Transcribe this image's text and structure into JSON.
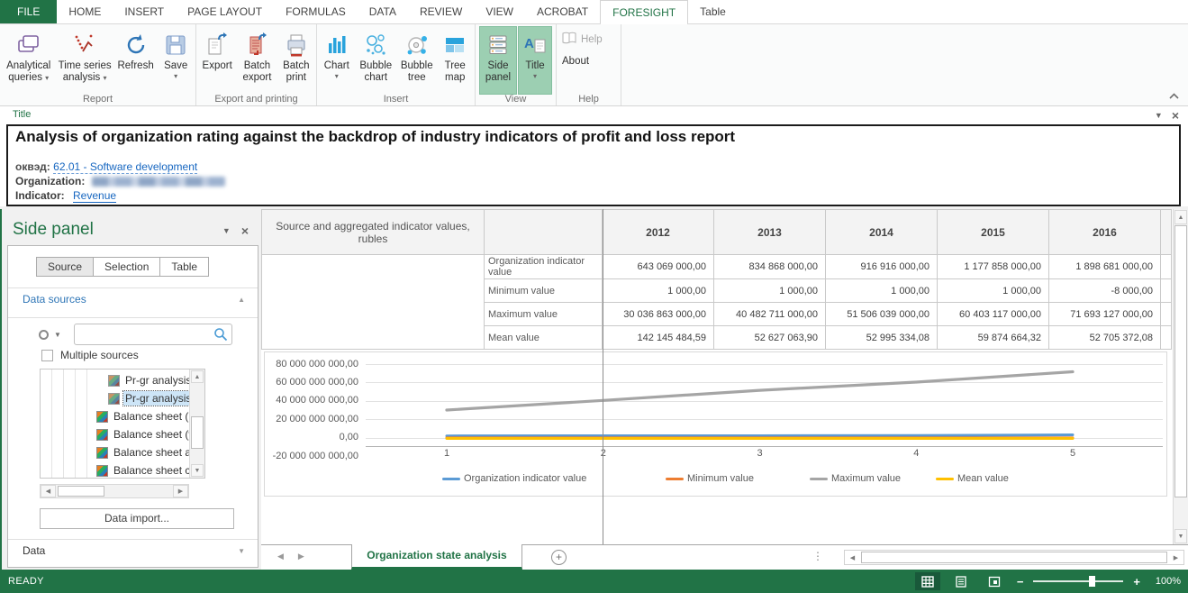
{
  "ribbon": {
    "tabs": [
      {
        "label": "FILE",
        "file": true
      },
      {
        "label": "HOME"
      },
      {
        "label": "INSERT"
      },
      {
        "label": "PAGE LAYOUT"
      },
      {
        "label": "FORMULAS"
      },
      {
        "label": "DATA"
      },
      {
        "label": "REVIEW"
      },
      {
        "label": "VIEW"
      },
      {
        "label": "ACROBAT"
      },
      {
        "label": "FORESIGHT",
        "active": true
      },
      {
        "label": "Table"
      }
    ],
    "groups": [
      {
        "label": "Report",
        "buttons": [
          {
            "label": "Analytical queries",
            "dropdown": true,
            "icon": "analytical-queries-icon"
          },
          {
            "label": "Time series analysis",
            "dropdown": true,
            "icon": "time-series-analysis-icon"
          },
          {
            "label": "Refresh",
            "icon": "refresh-icon"
          },
          {
            "label": "Save",
            "dropdown": true,
            "icon": "save-icon"
          }
        ]
      },
      {
        "label": "Export and printing",
        "buttons": [
          {
            "label": "Export",
            "icon": "export-icon"
          },
          {
            "label": "Batch export",
            "icon": "batch-export-icon"
          },
          {
            "label": "Batch print",
            "icon": "batch-print-icon"
          }
        ]
      },
      {
        "label": "Insert",
        "buttons": [
          {
            "label": "Chart",
            "dropdown": true,
            "icon": "chart-icon"
          },
          {
            "label": "Bubble chart",
            "icon": "bubble-chart-icon"
          },
          {
            "label": "Bubble tree",
            "icon": "bubble-tree-icon"
          },
          {
            "label": "Tree map",
            "icon": "tree-map-icon"
          }
        ]
      },
      {
        "label": "View",
        "buttons": [
          {
            "label": "Side panel",
            "active": true,
            "icon": "side-panel-icon"
          },
          {
            "label": "Title",
            "active": true,
            "dropdown": true,
            "icon": "title-icon"
          }
        ]
      },
      {
        "label": "Help",
        "buttons": [
          {
            "label": "Help",
            "disabled": true,
            "icon": "help-icon"
          },
          {
            "label": "About"
          }
        ]
      }
    ]
  },
  "title_panel": {
    "panel_label": "Title",
    "heading": "Analysis of organization rating against the backdrop of industry indicators of profit and loss report",
    "okved_label": "оквэд:",
    "okved_value": "62.01 - Software development",
    "organization_label": "Organization:",
    "organization_value_obscured": true,
    "indicator_label": "Indicator:",
    "indicator_value": "Revenue"
  },
  "side_panel": {
    "title": "Side panel",
    "tabs": [
      {
        "label": "Source",
        "active": true
      },
      {
        "label": "Selection",
        "active": false
      },
      {
        "label": "Table",
        "active": false
      }
    ],
    "data_sources_label": "Data sources",
    "search_placeholder": "",
    "multiple_sources_label": "Multiple sources",
    "tree_items": [
      {
        "label": "Pr-gr analysis",
        "indent": 1,
        "selected": false
      },
      {
        "label": "Pr-gr analysis",
        "indent": 1,
        "selected": true
      },
      {
        "label": "Balance sheet (l",
        "indent": 0,
        "selected": false
      },
      {
        "label": "Balance sheet (y",
        "indent": 0,
        "selected": false
      },
      {
        "label": "Balance sheet a",
        "indent": 0,
        "selected": false
      },
      {
        "label": "Balance sheet c",
        "indent": 0,
        "selected": false
      }
    ],
    "data_import_label": "Data import...",
    "data_label": "Data"
  },
  "table": {
    "corner_header": "Source and aggregated indicator values, rubles",
    "years": [
      "2012",
      "2013",
      "2014",
      "2015",
      "2016"
    ],
    "rows": [
      {
        "label": "Organization indicator value",
        "values": [
          "643 069 000,00",
          "834 868 000,00",
          "916 916 000,00",
          "1 177 858 000,00",
          "1 898 681 000,00"
        ]
      },
      {
        "label": "Minimum value",
        "values": [
          "1 000,00",
          "1 000,00",
          "1 000,00",
          "1 000,00",
          "-8 000,00"
        ]
      },
      {
        "label": "Maximum value",
        "values": [
          "30 036 863 000,00",
          "40 482 711 000,00",
          "51 506 039 000,00",
          "60 403 117 000,00",
          "71 693 127 000,00"
        ]
      },
      {
        "label": "Mean value",
        "values": [
          "142 145 484,59",
          "52 627 063,90",
          "52 995 334,08",
          "59 874 664,32",
          "52 705 372,08"
        ]
      }
    ]
  },
  "chart_data": {
    "type": "line",
    "x": [
      1,
      2,
      3,
      4,
      5
    ],
    "x_tick_labels": [
      "1",
      "2",
      "3",
      "4",
      "5"
    ],
    "ytick_labels": [
      "80 000 000 000,00",
      "60 000 000 000,00",
      "40 000 000 000,00",
      "20 000 000 000,00",
      "0,00",
      "-20 000 000 000,00"
    ],
    "ylim": [
      -20000000000,
      90000000000
    ],
    "grid": true,
    "legend_position": "bottom",
    "series": [
      {
        "name": "Organization indicator value",
        "color": "#5B9BD5",
        "values": [
          643069000.0,
          834868000.0,
          916916000.0,
          1177858000.0,
          1898681000.0
        ]
      },
      {
        "name": "Minimum value",
        "color": "#ED7D31",
        "values": [
          1000.0,
          1000.0,
          1000.0,
          1000.0,
          -8000.0
        ]
      },
      {
        "name": "Maximum value",
        "color": "#A5A5A5",
        "values": [
          30036863000.0,
          40482711000.0,
          51506039000.0,
          60403117000.0,
          71693127000.0
        ]
      },
      {
        "name": "Mean value",
        "color": "#FFC000",
        "values": [
          142145484.59,
          52627063.9,
          52995334.08,
          59874664.32,
          52705372.08
        ]
      }
    ]
  },
  "sheet_bar": {
    "active_tab": "Organization state analysis"
  },
  "status_bar": {
    "ready_label": "READY",
    "zoom_level": "100%"
  },
  "colors": {
    "excel_green": "#217346",
    "ribbon_active_green": "#9ccfb2",
    "link_blue": "#1666c0",
    "section_blue": "#2e75b6"
  }
}
